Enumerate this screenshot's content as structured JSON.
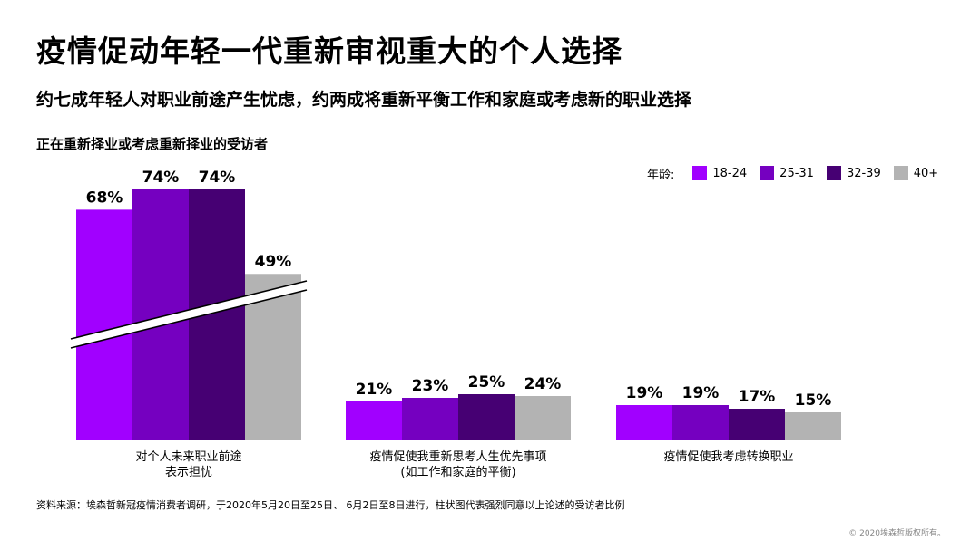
{
  "header": {
    "title": "疫情促动年轻一代重新审视重大的个人选择",
    "subtitle": "约七成年轻人对职业前途产生忧虑，约两成将重新平衡工作和家庭或考虑新的职业选择"
  },
  "chart_label": "正在重新择业或考虑重新择业的受访者",
  "legend": {
    "title": "年龄:",
    "items": [
      {
        "label": "18-24",
        "color": "#a100ff"
      },
      {
        "label": "25-31",
        "color": "#7500c0"
      },
      {
        "label": "32-39",
        "color": "#460073"
      },
      {
        "label": "40+",
        "color": "#b3b3b3"
      }
    ]
  },
  "chart_data": {
    "type": "bar",
    "title": "正在重新择业或考虑重新择业的受访者",
    "categories": [
      [
        "对个人未来职业前途",
        "表示担忧"
      ],
      [
        "疫情促使我重新思考人生优先事项",
        "(如工作和家庭的平衡)"
      ],
      [
        "疫情促使我考虑转换职业"
      ]
    ],
    "series": [
      {
        "name": "18-24",
        "color": "#a100ff",
        "values": [
          68,
          21,
          19
        ],
        "labels": [
          "68%",
          "21%",
          "19%"
        ]
      },
      {
        "name": "25-31",
        "color": "#7500c0",
        "values": [
          74,
          23,
          19
        ],
        "labels": [
          "74%",
          "23%",
          "19%"
        ]
      },
      {
        "name": "32-39",
        "color": "#460073",
        "values": [
          74,
          25,
          17
        ],
        "labels": [
          "74%",
          "25%",
          "17%"
        ]
      },
      {
        "name": "40+",
        "color": "#b3b3b3",
        "values": [
          49,
          24,
          15
        ],
        "labels": [
          "49%",
          "24%",
          "15%"
        ]
      }
    ],
    "axis_break": {
      "category_index": 0
    },
    "legend_position": "top-right"
  },
  "footer": {
    "source": "资料来源：埃森哲新冠疫情消费者调研，于2020年5月20日至25日、 6月2日至8日进行，柱状图代表强烈同意以上论述的受访者比例",
    "copyright": "© 2020埃森哲版权所有。"
  }
}
